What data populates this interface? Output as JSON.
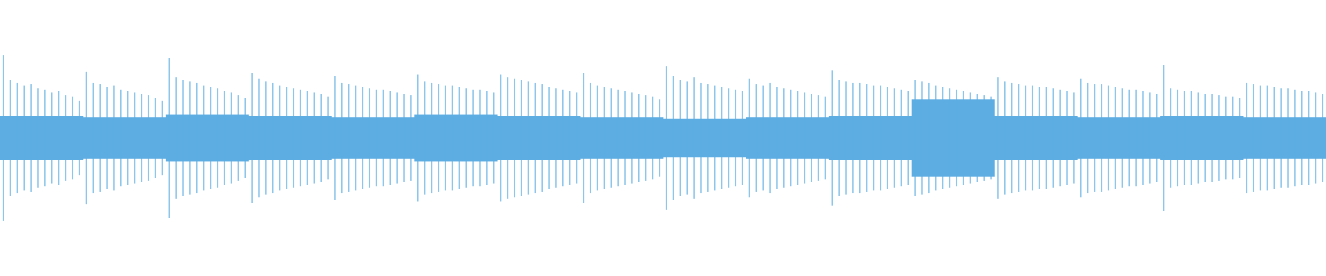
{
  "chart_data": {
    "type": "waveform",
    "color": "#5dade2",
    "ylim": [
      -1,
      1
    ],
    "values": [
      0.6,
      0.42,
      0.4,
      0.38,
      0.39,
      0.36,
      0.35,
      0.33,
      0.34,
      0.31,
      0.3,
      0.27,
      0.48,
      0.4,
      0.39,
      0.37,
      0.38,
      0.35,
      0.34,
      0.33,
      0.32,
      0.31,
      0.29,
      0.27,
      0.58,
      0.44,
      0.42,
      0.41,
      0.4,
      0.38,
      0.37,
      0.36,
      0.34,
      0.33,
      0.31,
      0.29,
      0.47,
      0.43,
      0.41,
      0.4,
      0.38,
      0.37,
      0.36,
      0.35,
      0.34,
      0.33,
      0.32,
      0.3,
      0.45,
      0.4,
      0.39,
      0.38,
      0.37,
      0.36,
      0.35,
      0.35,
      0.34,
      0.33,
      0.32,
      0.31,
      0.46,
      0.41,
      0.4,
      0.39,
      0.38,
      0.38,
      0.37,
      0.36,
      0.35,
      0.35,
      0.34,
      0.33,
      0.46,
      0.44,
      0.43,
      0.42,
      0.41,
      0.4,
      0.39,
      0.37,
      0.36,
      0.35,
      0.34,
      0.33,
      0.47,
      0.4,
      0.38,
      0.37,
      0.36,
      0.35,
      0.34,
      0.33,
      0.32,
      0.31,
      0.3,
      0.28,
      0.52,
      0.45,
      0.42,
      0.41,
      0.44,
      0.4,
      0.39,
      0.38,
      0.37,
      0.36,
      0.35,
      0.34,
      0.43,
      0.39,
      0.38,
      0.4,
      0.37,
      0.36,
      0.35,
      0.34,
      0.33,
      0.32,
      0.31,
      0.3,
      0.49,
      0.42,
      0.41,
      0.4,
      0.4,
      0.39,
      0.38,
      0.38,
      0.37,
      0.36,
      0.35,
      0.34,
      0.42,
      0.41,
      0.4,
      0.38,
      0.37,
      0.36,
      0.35,
      0.34,
      0.33,
      0.32,
      0.31,
      0.3,
      0.44,
      0.41,
      0.4,
      0.39,
      0.38,
      0.38,
      0.37,
      0.37,
      0.36,
      0.35,
      0.34,
      0.33,
      0.43,
      0.4,
      0.39,
      0.39,
      0.38,
      0.37,
      0.36,
      0.35,
      0.35,
      0.34,
      0.33,
      0.32,
      0.53,
      0.36,
      0.35,
      0.34,
      0.34,
      0.33,
      0.32,
      0.32,
      0.31,
      0.3,
      0.3,
      0.29,
      0.4,
      0.39,
      0.38,
      0.38,
      0.37,
      0.36,
      0.36,
      0.35,
      0.34,
      0.34,
      0.33,
      0.32
    ],
    "core": [
      0.16,
      0.15,
      0.17,
      0.16,
      0.15,
      0.17,
      0.16,
      0.15,
      0.14,
      0.15,
      0.16,
      0.28,
      0.16,
      0.15,
      0.16,
      0.15
    ]
  }
}
